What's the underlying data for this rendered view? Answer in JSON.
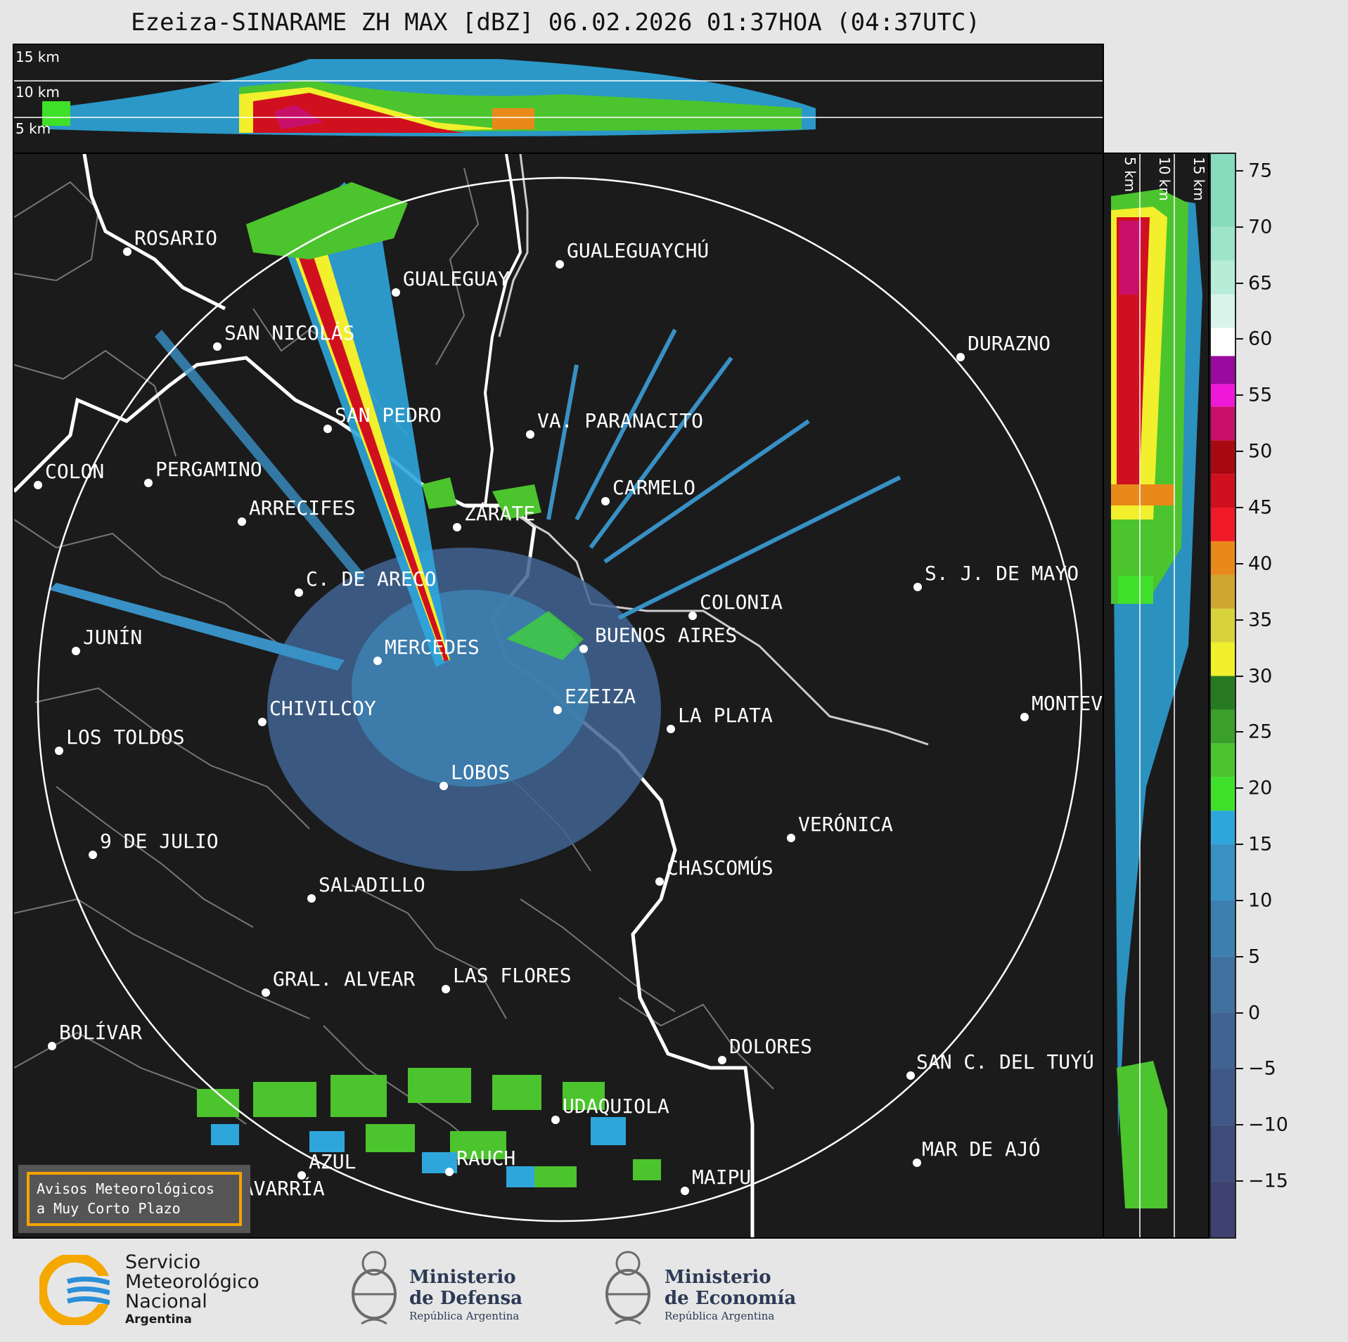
{
  "title": "Ezeiza-SINARAME ZH MAX [dBZ] 06.02.2026 01:37HOA (04:37UTC)",
  "height_labels_top": [
    "15 km",
    "10 km",
    "5 km"
  ],
  "height_labels_side": [
    "5 km",
    "10 km",
    "15 km"
  ],
  "cities": [
    {
      "name": "ROSARIO"
    },
    {
      "name": "GUALEGUAYCHÚ"
    },
    {
      "name": "GUALEGUAY"
    },
    {
      "name": "SAN NICOLÁS"
    },
    {
      "name": "DURAZNO"
    },
    {
      "name": "SAN PEDRO"
    },
    {
      "name": "VA. PARANACITO"
    },
    {
      "name": "COLON"
    },
    {
      "name": "PERGAMINO"
    },
    {
      "name": "CARMELO"
    },
    {
      "name": "ARRECIFES"
    },
    {
      "name": "ZÁRATE"
    },
    {
      "name": "S. J. DE MAYO"
    },
    {
      "name": "C. DE ARECO"
    },
    {
      "name": "COLONIA"
    },
    {
      "name": "JUNÍN"
    },
    {
      "name": "BUENOS AIRES"
    },
    {
      "name": "MERCEDES"
    },
    {
      "name": "EZEIZA"
    },
    {
      "name": "MONTEV"
    },
    {
      "name": "CHIVILCOY"
    },
    {
      "name": "LA PLATA"
    },
    {
      "name": "LOS TOLDOS"
    },
    {
      "name": "LOBOS"
    },
    {
      "name": "VERÓNICA"
    },
    {
      "name": "9 DE JULIO"
    },
    {
      "name": "CHASCOMÚS"
    },
    {
      "name": "SALADILLO"
    },
    {
      "name": "GRAL. ALVEAR"
    },
    {
      "name": "LAS FLORES"
    },
    {
      "name": "BOLÍVAR"
    },
    {
      "name": "DOLORES"
    },
    {
      "name": "SAN C. DEL TUYÚ"
    },
    {
      "name": "UDAQUIOLA"
    },
    {
      "name": "MAR DE AJÓ"
    },
    {
      "name": "AZUL"
    },
    {
      "name": "RAUCH"
    },
    {
      "name": "OLAVARRÍA"
    },
    {
      "name": "MAIPU"
    }
  ],
  "colorbar": {
    "ticks": [
      "75",
      "70",
      "65",
      "60",
      "55",
      "50",
      "45",
      "40",
      "35",
      "30",
      "25",
      "20",
      "15",
      "10",
      "5",
      "0",
      "−5",
      "−10",
      "−15"
    ],
    "min": -20,
    "max": 76.5,
    "stops": [
      {
        "from": -20,
        "to": -15,
        "color": "#3d4270"
      },
      {
        "from": -15,
        "to": -10,
        "color": "#3e4c7c"
      },
      {
        "from": -10,
        "to": -5,
        "color": "#3f5787"
      },
      {
        "from": -5,
        "to": 0,
        "color": "#406392"
      },
      {
        "from": 0,
        "to": 5,
        "color": "#40709d"
      },
      {
        "from": 5,
        "to": 10,
        "color": "#3d7fae"
      },
      {
        "from": 10,
        "to": 15,
        "color": "#3890c4"
      },
      {
        "from": 15,
        "to": 18,
        "color": "#2ea6dc"
      },
      {
        "from": 18,
        "to": 21,
        "color": "#3fe02a"
      },
      {
        "from": 21,
        "to": 24,
        "color": "#4cc42e"
      },
      {
        "from": 24,
        "to": 27,
        "color": "#3aa02a"
      },
      {
        "from": 27,
        "to": 30,
        "color": "#287a22"
      },
      {
        "from": 30,
        "to": 33,
        "color": "#f2ef2c"
      },
      {
        "from": 33,
        "to": 36,
        "color": "#d8d23a"
      },
      {
        "from": 36,
        "to": 39,
        "color": "#cfa72e"
      },
      {
        "from": 39,
        "to": 42,
        "color": "#e8891a"
      },
      {
        "from": 42,
        "to": 45,
        "color": "#f01a28"
      },
      {
        "from": 45,
        "to": 48,
        "color": "#d0101e"
      },
      {
        "from": 48,
        "to": 51,
        "color": "#a80812"
      },
      {
        "from": 51,
        "to": 54,
        "color": "#c8106a"
      },
      {
        "from": 54,
        "to": 56,
        "color": "#f018d8"
      },
      {
        "from": 56,
        "to": 58.5,
        "color": "#9a0aa0"
      },
      {
        "from": 58.5,
        "to": 61,
        "color": "#ffffff"
      },
      {
        "from": 61,
        "to": 64,
        "color": "#d8f4ea"
      },
      {
        "from": 64,
        "to": 67,
        "color": "#b6ecd8"
      },
      {
        "from": 67,
        "to": 70,
        "color": "#9ee4c8"
      },
      {
        "from": 70,
        "to": 76.5,
        "color": "#86dcbc"
      }
    ]
  },
  "warning": {
    "line1": "Avisos Meteorológicos",
    "line2": "a Muy Corto Plazo"
  },
  "logos": {
    "smn": {
      "line1": "Servicio",
      "line2": "Meteorológico",
      "line3": "Nacional",
      "line4": "Argentina"
    },
    "defensa": {
      "line1": "Ministerio",
      "line2": "de Defensa",
      "line3": "República Argentina"
    },
    "economia": {
      "line1": "Ministerio",
      "line2": "de Economía",
      "line3": "República Argentina"
    }
  },
  "colors": {
    "background": "#1b1b1b",
    "echo_light": "#3a8fc4",
    "echo_green": "#3fd42a",
    "echo_red": "#c8101e"
  }
}
